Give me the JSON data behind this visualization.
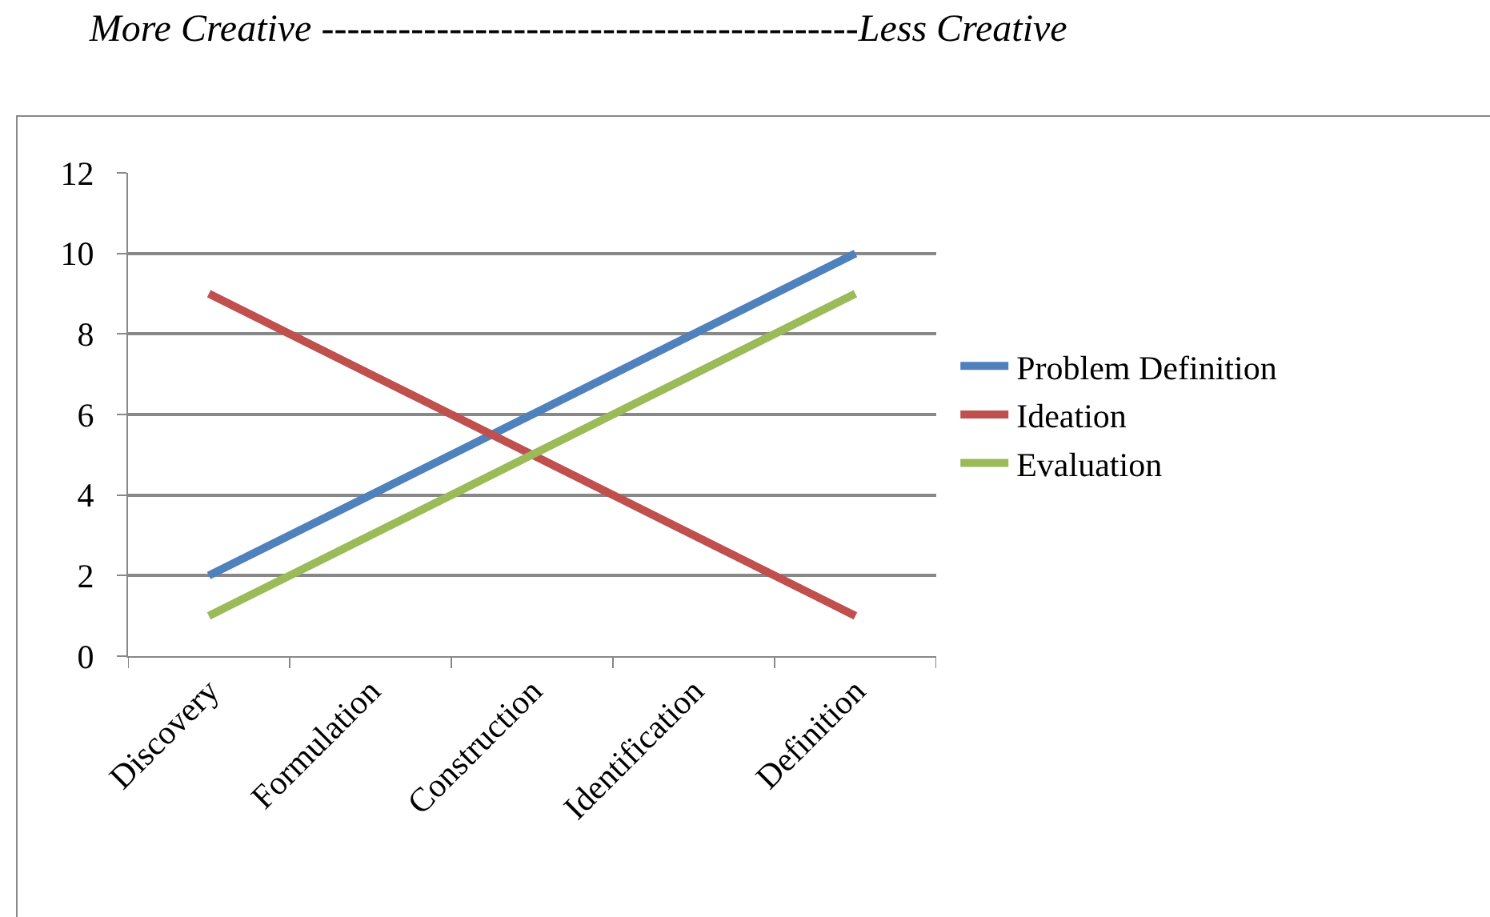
{
  "chart_data": {
    "type": "line",
    "title": "More Creative ------------------------------------------Less Creative",
    "categories": [
      "Discovery",
      "Formulation",
      "Construction",
      "Identification",
      "Definition"
    ],
    "series": [
      {
        "name": "Problem Definition",
        "color": "#4f81bd",
        "values": [
          2,
          4,
          6,
          8,
          10
        ]
      },
      {
        "name": "Ideation",
        "color": "#c0504d",
        "values": [
          9,
          7,
          5,
          3,
          1
        ]
      },
      {
        "name": "Evaluation",
        "color": "#9bbb59",
        "values": [
          1,
          3,
          5,
          7,
          9
        ]
      }
    ],
    "ylim": [
      0,
      12
    ],
    "yticks": [
      0,
      2,
      4,
      6,
      8,
      10,
      12
    ],
    "grid": "y",
    "legend": "right",
    "marker": "none",
    "line_style": "solid"
  }
}
